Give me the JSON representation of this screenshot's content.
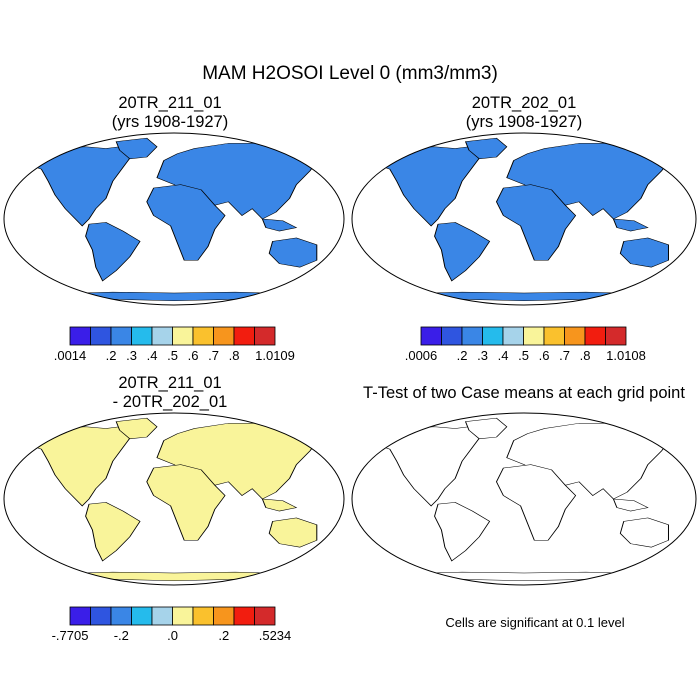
{
  "title": "MAM H2OSOI Level 0 (mm3/mm3)",
  "colors": {
    "palette": [
      "#3a1ee8",
      "#2f55e0",
      "#3a86e6",
      "#25bbec",
      "#a6d3ea",
      "#f9f49a",
      "#fac12d",
      "#f7951d",
      "#f21d0f",
      "#d42a2b"
    ],
    "land_diff_yellow": "#f9f49a",
    "land_diff_blue": "#a6d3ea",
    "significant": "#ff0000"
  },
  "panels": [
    {
      "id": "case1",
      "title_line1": "20TR_211_01",
      "title_line2": "(yrs 1908-1927)",
      "colorbar": {
        "labels": [
          ".0014",
          ".2",
          ".3",
          ".4",
          ".5",
          ".6",
          ".7",
          ".8",
          "1.0109"
        ]
      }
    },
    {
      "id": "case2",
      "title_line1": "20TR_202_01",
      "title_line2": "(yrs 1908-1927)",
      "colorbar": {
        "labels": [
          ".0006",
          ".2",
          ".3",
          ".4",
          ".5",
          ".6",
          ".7",
          ".8",
          "1.0108"
        ]
      }
    },
    {
      "id": "difference",
      "title_line1": "20TR_211_01",
      "title_line2": "- 20TR_202_01",
      "colorbar": {
        "labels": [
          "-.7705",
          "-.2",
          ".0",
          ".2",
          ".5234"
        ]
      }
    },
    {
      "id": "ttest",
      "title_line1": "T-Test of two Case means at each grid point",
      "note": "Cells are significant at 0.1 level"
    }
  ]
}
